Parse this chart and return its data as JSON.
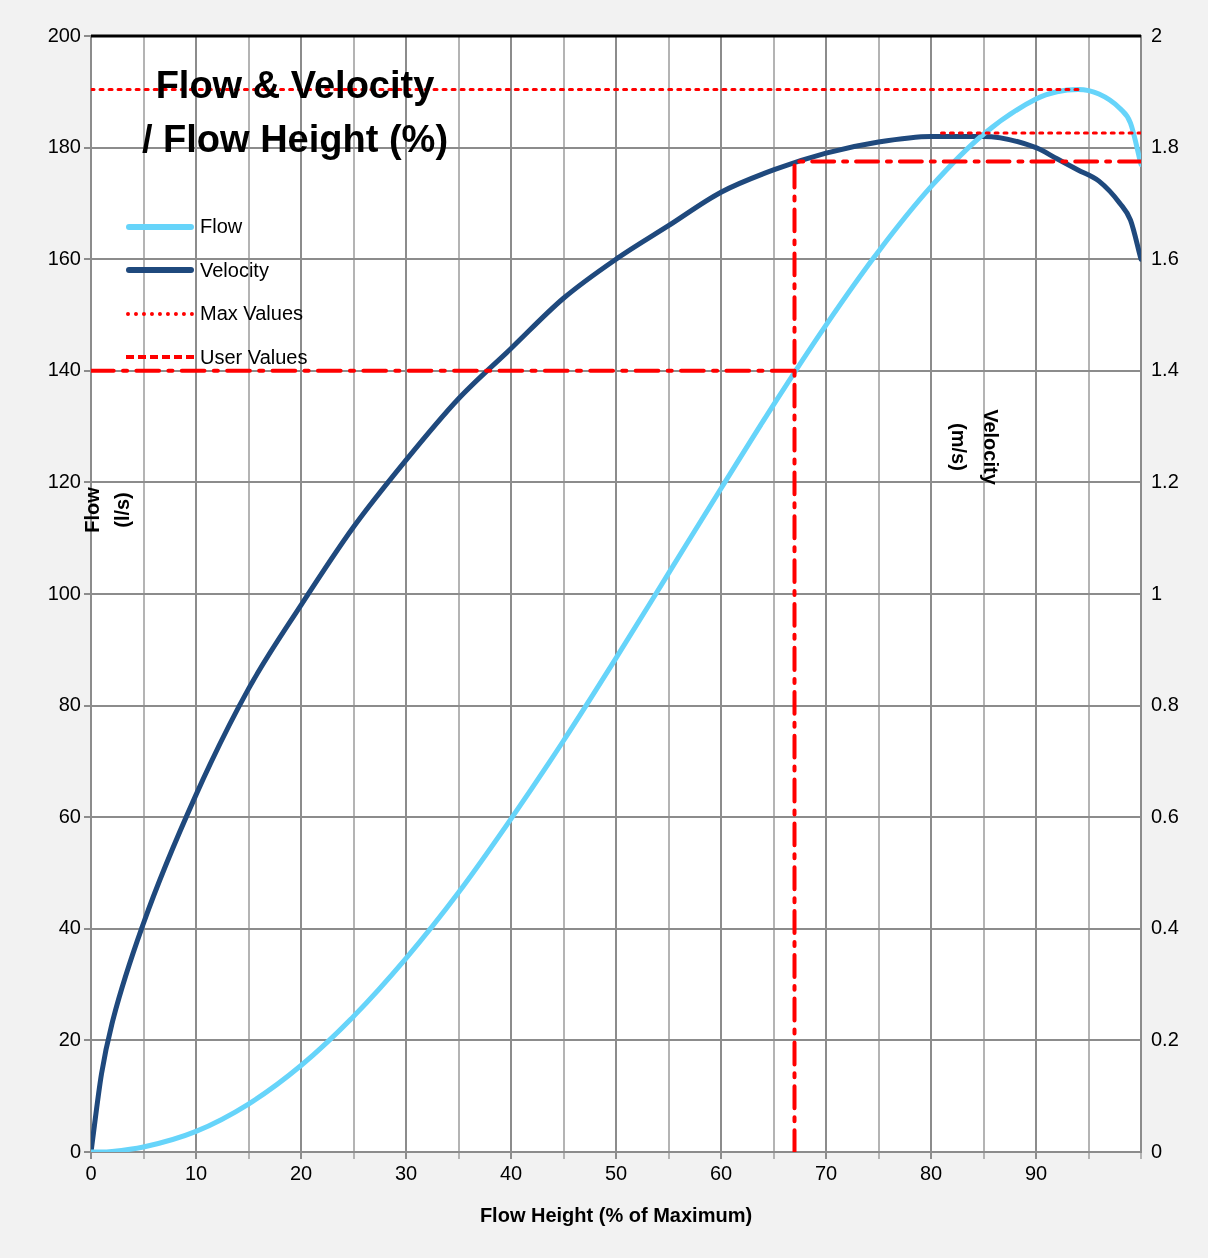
{
  "chart_data": {
    "type": "line",
    "title": "Flow & Velocity\n/ Flow Height (%)",
    "xlabel": "Flow Height (% of Maximum)",
    "ylabel": "Flow\n(l/s)",
    "y2label": "Velocity\n(m/s)",
    "xlim": [
      0,
      100
    ],
    "xticks": [
      0,
      {
        "value": 5,
        "label": null
      },
      10,
      {
        "value": 15,
        "label": null
      },
      20,
      {
        "value": 25,
        "label": null
      },
      30,
      {
        "value": 35,
        "label": null
      },
      40,
      {
        "value": 45,
        "label": null
      },
      50,
      {
        "value": 55,
        "label": null
      },
      60,
      {
        "value": 65,
        "label": null
      },
      70,
      {
        "value": 75,
        "label": null
      },
      80,
      {
        "value": 85,
        "label": null
      },
      90,
      {
        "value": 95,
        "label": null
      },
      {
        "value": 100,
        "label": null
      }
    ],
    "ylim": [
      0,
      200
    ],
    "yticks": [
      0,
      20,
      40,
      60,
      80,
      100,
      120,
      140,
      160,
      180,
      200
    ],
    "y2lim": [
      0,
      2
    ],
    "y2ticks": [
      0,
      0.2,
      0.4,
      0.6,
      0.8,
      1,
      1.2,
      1.4,
      1.6,
      1.8,
      2
    ],
    "grid": true,
    "legend": "top left",
    "marker": "none",
    "series": [
      {
        "name": "Flow",
        "color": "#66d4fa",
        "line_style": "solid",
        "axis": "y",
        "x": [
          0,
          1,
          2,
          5,
          10,
          15,
          20,
          25,
          30,
          35,
          40,
          45,
          50,
          55,
          60,
          65,
          70,
          75,
          80,
          85,
          90,
          92,
          94,
          96,
          98,
          99,
          100
        ],
        "values": [
          0,
          0,
          0.1,
          0.9,
          3.7,
          8.6,
          15.5,
          24.3,
          34.7,
          46.5,
          59.7,
          73.7,
          88.5,
          103.7,
          118.9,
          133.9,
          148.2,
          161.4,
          173,
          182.4,
          188.7,
          190,
          190.4,
          189.6,
          187,
          184.4,
          177
        ]
      },
      {
        "name": "Velocity",
        "color": "#1f497d",
        "line_style": "solid",
        "axis": "y2",
        "x": [
          0,
          1,
          2,
          5,
          10,
          15,
          20,
          25,
          30,
          35,
          40,
          45,
          50,
          55,
          60,
          65,
          70,
          75,
          80,
          85,
          90,
          92,
          94,
          96,
          98,
          99,
          100
        ],
        "values": [
          0,
          0.14,
          0.23,
          0.41,
          0.64,
          0.83,
          0.98,
          1.12,
          1.24,
          1.35,
          1.44,
          1.53,
          1.6,
          1.66,
          1.72,
          1.76,
          1.79,
          1.81,
          1.82,
          1.82,
          1.8,
          1.78,
          1.76,
          1.74,
          1.7,
          1.67,
          1.6
        ]
      },
      {
        "name": "Max Values",
        "color": "#ff0000",
        "line_style": "dotted",
        "axis": "y",
        "x": [
          0,
          94
        ],
        "values": [
          190.4,
          190.4
        ]
      },
      {
        "color": "#ff0000",
        "line_style": "dotted",
        "axis": "y2",
        "x": [
          81,
          100
        ],
        "values": [
          1.826,
          1.826
        ]
      },
      {
        "name": "User Values",
        "color": "#ff0000",
        "line_style": "dashed",
        "axis": "y",
        "x": [
          0,
          67
        ],
        "values": [
          140,
          140
        ]
      },
      {
        "color": "#ff0000",
        "line_style": "dashed",
        "axis": "y2",
        "x": [
          67,
          67,
          100
        ],
        "values": [
          0,
          1.775,
          1.775
        ]
      }
    ]
  }
}
